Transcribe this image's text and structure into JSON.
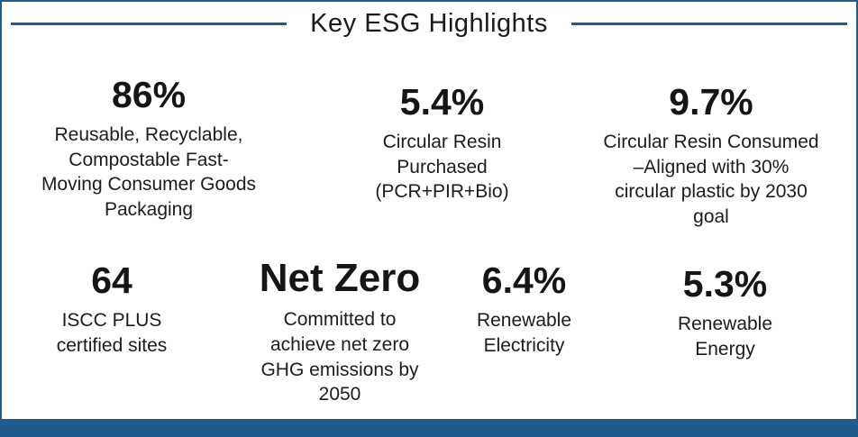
{
  "title": "Key ESG Highlights",
  "colors": {
    "accent": "#1f5c8d",
    "text": "#111111",
    "bg": "#ffffff"
  },
  "stats_row1": [
    {
      "value": "86%",
      "label": "Reusable, Recyclable,\nCompostable Fast-\nMoving Consumer Goods\nPackaging"
    },
    {
      "value": "5.4%",
      "label": "Circular Resin\nPurchased\n(PCR+PIR+Bio)"
    },
    {
      "value": "9.7%",
      "label": "Circular Resin Consumed\n–Aligned with 30%\ncircular plastic by 2030\ngoal"
    }
  ],
  "stats_row2": [
    {
      "value": "64",
      "label": "ISCC PLUS\ncertified sites"
    },
    {
      "value": "Net Zero",
      "label": "Committed to\nachieve net zero\nGHG emissions by\n2050"
    },
    {
      "value": "6.4%",
      "label": "Renewable\nElectricity"
    },
    {
      "value": "5.3%",
      "label": "Renewable\nEnergy"
    }
  ]
}
